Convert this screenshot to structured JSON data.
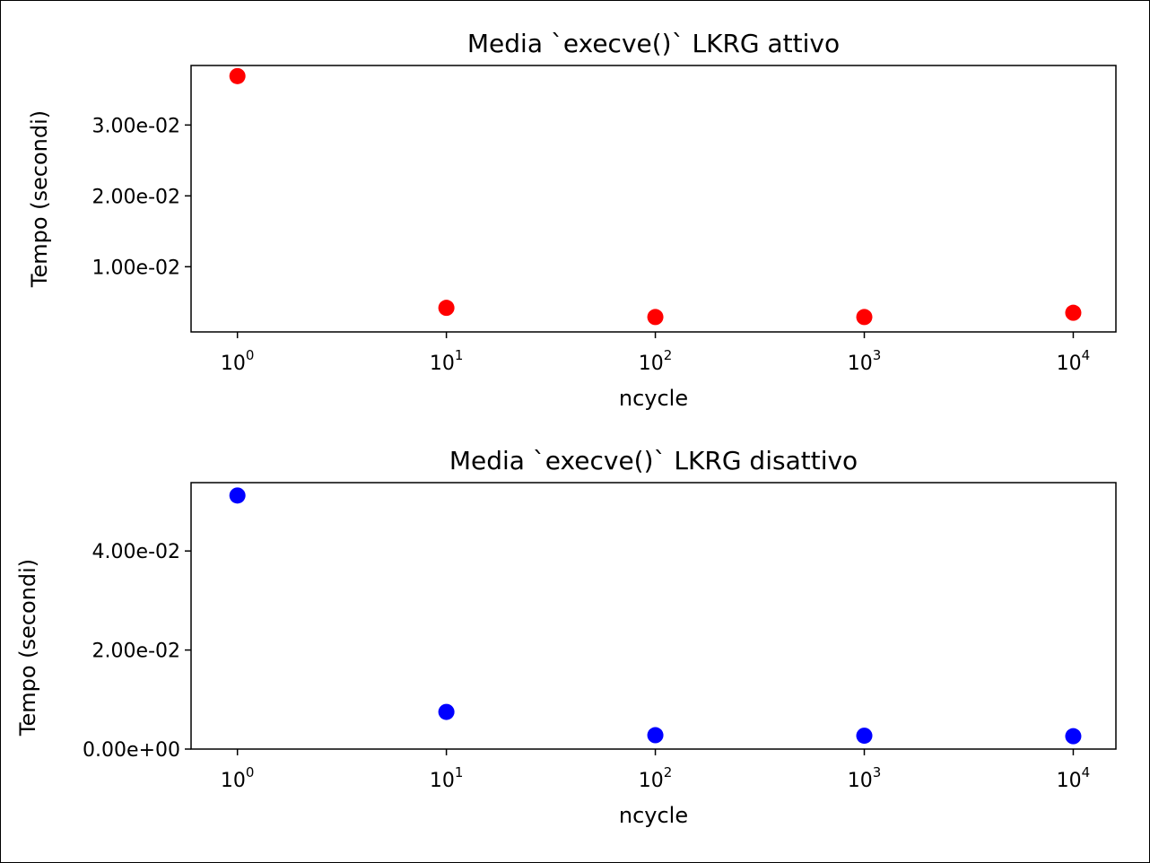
{
  "chart_data": [
    {
      "type": "scatter",
      "title": "Media `execve()` LKRG attivo",
      "xlabel": "ncycle",
      "ylabel": "Tempo (secondi)",
      "xscale": "log",
      "x": [
        1,
        10,
        100,
        1000,
        10000
      ],
      "y": [
        0.0369,
        0.0042,
        0.0029,
        0.0029,
        0.0035
      ],
      "xlim": [
        0.6,
        16000
      ],
      "ylim": [
        0.0008,
        0.0384
      ],
      "xticks": [
        1,
        10,
        100,
        1000,
        10000
      ],
      "xtick_base": "10",
      "xtick_exponents": [
        "0",
        "1",
        "2",
        "3",
        "4"
      ],
      "yticks": [
        0.01,
        0.02,
        0.03
      ],
      "ytick_labels": [
        "1.00e-02",
        "2.00e-02",
        "3.00e-02"
      ],
      "color": "#ff0000",
      "grid": false,
      "legend": "none"
    },
    {
      "type": "scatter",
      "title": "Media `execve()` LKRG disattivo",
      "xlabel": "ncycle",
      "ylabel": "Tempo (secondi)",
      "xscale": "log",
      "x": [
        1,
        10,
        100,
        1000,
        10000
      ],
      "y": [
        0.0512,
        0.0075,
        0.0028,
        0.0027,
        0.0026
      ],
      "xlim": [
        0.6,
        16000
      ],
      "ylim": [
        0.0,
        0.0538
      ],
      "xticks": [
        1,
        10,
        100,
        1000,
        10000
      ],
      "xtick_base": "10",
      "xtick_exponents": [
        "0",
        "1",
        "2",
        "3",
        "4"
      ],
      "yticks": [
        0.0,
        0.02,
        0.04
      ],
      "ytick_labels": [
        "0.00e+00",
        "2.00e-02",
        "4.00e-02"
      ],
      "color": "#0000ff",
      "grid": false,
      "legend": "none"
    }
  ]
}
